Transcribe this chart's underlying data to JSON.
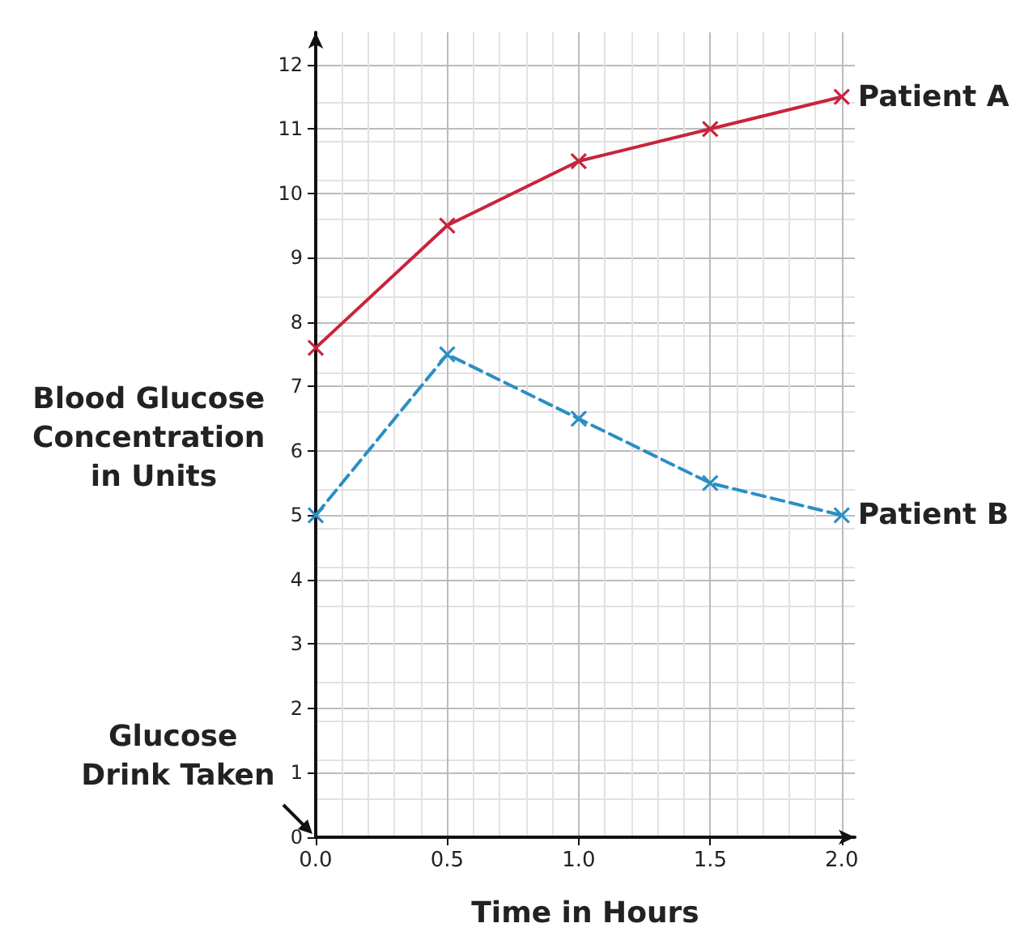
{
  "chart_data": {
    "type": "line",
    "xlabel": "Time in Hours",
    "ylabel": "Blood Glucose Concentration in Units",
    "x": [
      0,
      0.5,
      1.0,
      1.5,
      2.0
    ],
    "series": [
      {
        "name": "Patient A",
        "color": "#c8243c",
        "line_style": "solid",
        "values": [
          7.6,
          9.5,
          10.5,
          11,
          11.5
        ]
      },
      {
        "name": "Patient B",
        "color": "#2a8fc4",
        "line_style": "dashed",
        "values": [
          5,
          7.5,
          6.5,
          5.5,
          5
        ]
      }
    ],
    "xlim": [
      0,
      2.05
    ],
    "ylim": [
      0,
      12.5
    ],
    "xticks": [
      {
        "value": 0,
        "label": "0.0"
      },
      {
        "value": 0.5,
        "label": "0.5"
      },
      {
        "value": 1,
        "label": "1.0"
      },
      {
        "value": 1.5,
        "label": "1.5"
      },
      {
        "value": 2,
        "label": "2.0"
      }
    ],
    "yticks": [
      0,
      1,
      2,
      3,
      4,
      5,
      6,
      7,
      8,
      9,
      10,
      11,
      12
    ],
    "grid": true,
    "legend": false,
    "marker": "cross",
    "annotations": [
      "Glucose Drink Taken"
    ]
  }
}
